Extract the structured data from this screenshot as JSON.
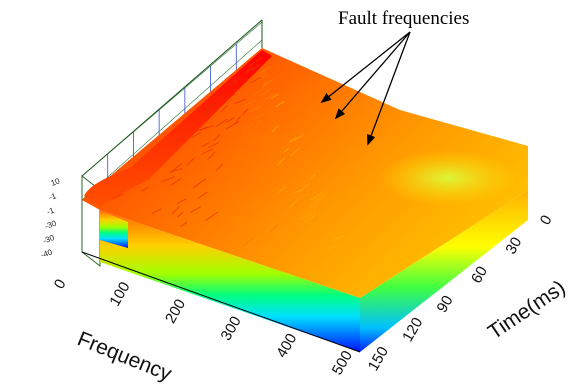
{
  "chart_data": {
    "type": "surface3d",
    "title": "",
    "xlabel": "Frequency",
    "ylabel": "Time(ms)",
    "zlabel": "",
    "x_ticks": [
      "0",
      "100",
      "200",
      "300",
      "400",
      "500"
    ],
    "y_ticks": [
      "0",
      "30",
      "60",
      "90",
      "120",
      "150"
    ],
    "z_ticks": [
      "10",
      "-1",
      "-1",
      "-30",
      "-30",
      "-40"
    ],
    "xlim": [
      0,
      500
    ],
    "ylim": [
      0,
      150
    ],
    "colormap": [
      "#ff0000",
      "#ff8000",
      "#ffff00",
      "#00ff00",
      "#00ffff",
      "#0000ff"
    ],
    "annotation": {
      "text": "Fault frequencies",
      "arrow_count": 3
    },
    "grid": true
  }
}
